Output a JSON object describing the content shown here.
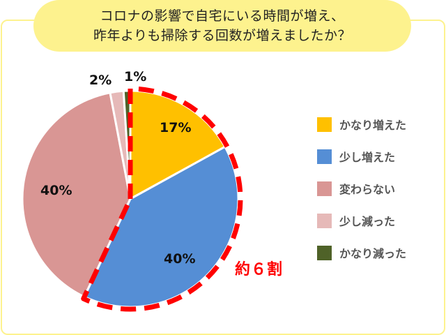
{
  "title": {
    "line1": "コロナの影響で自宅にいる時間が増え、",
    "line2": "昨年よりも掃除する回数が増えましたか？"
  },
  "chart_data": {
    "type": "pie",
    "title": "コロナの影響で自宅にいる時間が増え、昨年よりも掃除する回数が増えましたか？",
    "categories": [
      "かなり増えた",
      "少し増えた",
      "変わらない",
      "少し減った",
      "かなり減った"
    ],
    "values": [
      17,
      40,
      40,
      2,
      1
    ],
    "labels": [
      "17%",
      "40%",
      "40%",
      "2%",
      "1%"
    ],
    "colors": [
      "#ffc000",
      "#558ed5",
      "#d99694",
      "#e6b9b8",
      "#4f6228"
    ],
    "legend_position": "right",
    "annotation": "約６割",
    "highlighted_categories": [
      "かなり増えた",
      "少し増えた"
    ]
  },
  "legend": {
    "items": [
      {
        "label": "かなり増えた",
        "color": "#ffc000"
      },
      {
        "label": "少し増えた",
        "color": "#558ed5"
      },
      {
        "label": "変わらない",
        "color": "#d99694"
      },
      {
        "label": "少し減った",
        "color": "#e6b9b8"
      },
      {
        "label": "かなり減った",
        "color": "#4f6228"
      }
    ]
  },
  "slice_labels": {
    "s0": "17%",
    "s1": "40%",
    "s2": "40%",
    "s3": "2%",
    "s4": "1%"
  },
  "callout": "約６割"
}
